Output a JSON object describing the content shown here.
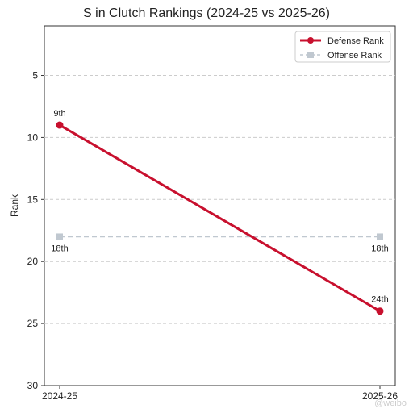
{
  "chart_data": {
    "type": "line",
    "title": "S    in Clutch Rankings (2024-25 vs 2025-26)",
    "xlabel": "",
    "ylabel": "Rank",
    "categories": [
      "2024-25",
      "2025-26"
    ],
    "ylim": [
      30,
      1
    ],
    "y_inverted": true,
    "yticks": [
      5,
      10,
      15,
      20,
      25,
      30
    ],
    "grid": "horizontal dashed",
    "legend_position": "top-right",
    "series": [
      {
        "name": "Defense Rank",
        "values": [
          9,
          24
        ],
        "labels": [
          "9th",
          "24th"
        ],
        "color": "#c8102e",
        "style": "solid",
        "marker": "circle"
      },
      {
        "name": "Offense Rank",
        "values": [
          18,
          18
        ],
        "labels": [
          "18th",
          "18th"
        ],
        "color": "#c0c8d0",
        "style": "dashed",
        "marker": "square"
      }
    ]
  },
  "watermark": "@weibo"
}
